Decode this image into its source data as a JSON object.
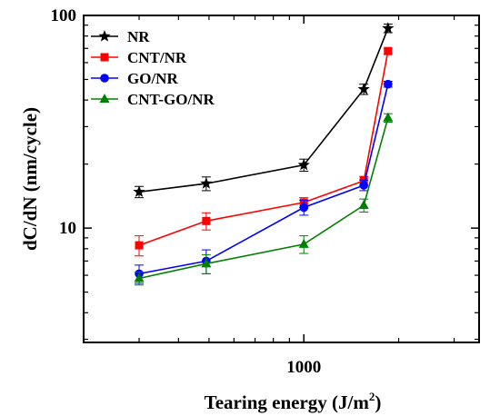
{
  "chart_data": {
    "type": "line",
    "title": "",
    "xlabel": "Tearing energy (J/m",
    "xlabel_sup": "2",
    "xlabel_close": ")",
    "ylabel": "dC/dN (nm/cycle)",
    "xscale": "log",
    "yscale": "log",
    "xlim": [
      200,
      3600
    ],
    "ylim": [
      2.9,
      100
    ],
    "x_tick_labels": [
      {
        "value": 1000,
        "label": "1000"
      }
    ],
    "y_tick_labels": [
      {
        "value": 10,
        "label": "10"
      },
      {
        "value": 100,
        "label": "100"
      }
    ],
    "x_minor_ticks": [
      300,
      400,
      500,
      600,
      700,
      800,
      900,
      2000,
      3000
    ],
    "y_minor_ticks": [
      3,
      4,
      5,
      6,
      7,
      8,
      9,
      20,
      30,
      40,
      50,
      60,
      70,
      80,
      90
    ],
    "grid": false,
    "legend_position": "top-left",
    "series": [
      {
        "name": "NR",
        "color": "#000000",
        "marker": "star",
        "x": [
          300,
          490,
          1000,
          1550,
          1850
        ],
        "y": [
          14.8,
          16.2,
          19.8,
          45,
          87
        ],
        "err": [
          0.9,
          1.2,
          1.3,
          2.5,
          4
        ]
      },
      {
        "name": "CNT/NR",
        "color": "#ff0000",
        "marker": "square",
        "x": [
          300,
          490,
          1000,
          1550,
          1850
        ],
        "y": [
          8.3,
          10.8,
          13.2,
          16.7,
          68
        ],
        "err": [
          0.9,
          1.0,
          0.7,
          0.8,
          2
        ]
      },
      {
        "name": "GO/NR",
        "color": "#0000ff",
        "marker": "circle",
        "x": [
          300,
          490,
          1000,
          1550,
          1850
        ],
        "y": [
          6.1,
          7.0,
          12.5,
          15.9,
          47.5
        ],
        "err": [
          0.6,
          0.9,
          1.0,
          0.9,
          1.5
        ]
      },
      {
        "name": "CNT-GO/NR",
        "color": "#008000",
        "marker": "triangle",
        "x": [
          300,
          490,
          1000,
          1550,
          1850
        ],
        "y": [
          5.8,
          6.8,
          8.4,
          12.8,
          33
        ],
        "err": [
          0.4,
          0.7,
          0.8,
          0.9,
          1.5
        ]
      }
    ]
  }
}
